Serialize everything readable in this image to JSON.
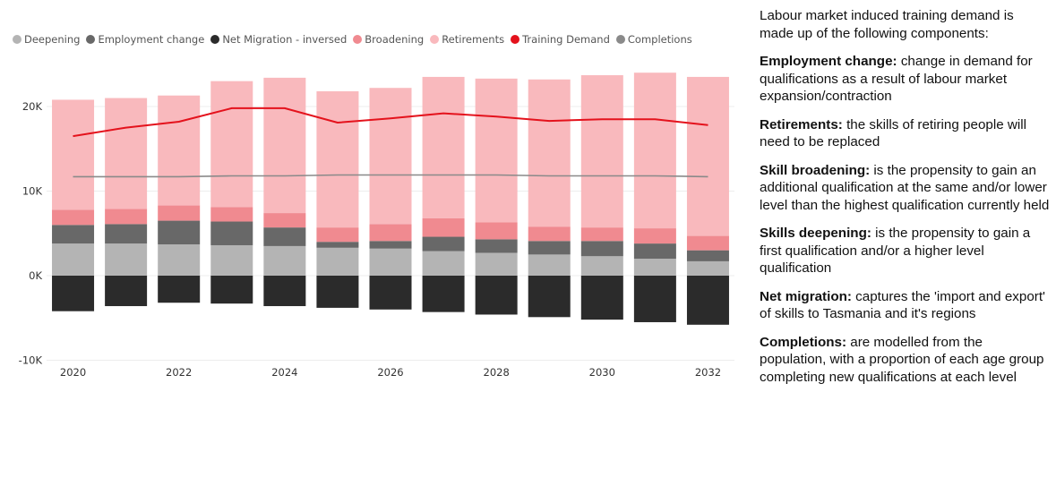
{
  "legend": [
    {
      "label": "Deepening",
      "color": "#b4b4b4"
    },
    {
      "label": "Employment change",
      "color": "#686868"
    },
    {
      "label": "Net Migration - inversed",
      "color": "#2b2b2b"
    },
    {
      "label": "Broadening",
      "color": "#f08a90"
    },
    {
      "label": "Retirements",
      "color": "#f9b9bd"
    },
    {
      "label": "Training Demand",
      "color": "#e4121c"
    },
    {
      "label": "Completions",
      "color": "#8a8a8a"
    }
  ],
  "chart_data": {
    "type": "bar",
    "stacked": true,
    "categories": [
      "2020",
      "2021",
      "2022",
      "2023",
      "2024",
      "2025",
      "2026",
      "2027",
      "2028",
      "2029",
      "2030",
      "2031",
      "2032"
    ],
    "x_tick_labels": [
      "2020",
      "2022",
      "2024",
      "2026",
      "2028",
      "2030",
      "2032"
    ],
    "y_ticks": [
      {
        "value": 20000,
        "label": "20K"
      },
      {
        "value": 10000,
        "label": "10K"
      },
      {
        "value": 0,
        "label": "0K"
      },
      {
        "value": -10000,
        "label": "-10K"
      }
    ],
    "ylim": [
      -10000,
      24500
    ],
    "series": [
      {
        "name": "Deepening",
        "color": "#b4b4b4",
        "values": [
          3800,
          3800,
          3700,
          3600,
          3500,
          3300,
          3200,
          2900,
          2700,
          2500,
          2300,
          2000,
          1700
        ]
      },
      {
        "name": "Employment change",
        "color": "#686868",
        "values": [
          2200,
          2300,
          2800,
          2800,
          2200,
          700,
          900,
          1700,
          1600,
          1600,
          1800,
          1800,
          1300
        ]
      },
      {
        "name": "Net Migration - inversed",
        "color": "#2b2b2b",
        "values": [
          -4200,
          -3600,
          -3200,
          -3300,
          -3600,
          -3800,
          -4000,
          -4300,
          -4600,
          -4900,
          -5200,
          -5500,
          -5800
        ]
      },
      {
        "name": "Broadening",
        "color": "#f08a90",
        "values": [
          1800,
          1800,
          1800,
          1700,
          1700,
          1700,
          2000,
          2200,
          2000,
          1700,
          1600,
          1800,
          1700
        ]
      },
      {
        "name": "Retirements",
        "color": "#f9b9bd",
        "values": [
          13000,
          13100,
          13000,
          14900,
          16000,
          16100,
          16100,
          16700,
          17000,
          17400,
          18000,
          18400,
          18800
        ]
      }
    ],
    "lines": [
      {
        "name": "Training Demand",
        "color": "#e4121c",
        "values": [
          16500,
          17500,
          18200,
          19800,
          19800,
          18100,
          18600,
          19200,
          18800,
          18300,
          18500,
          18500,
          17800
        ]
      },
      {
        "name": "Completions",
        "color": "#8a8a8a",
        "values": [
          11700,
          11700,
          11700,
          11800,
          11800,
          11900,
          11900,
          11900,
          11900,
          11800,
          11800,
          11800,
          11700
        ]
      }
    ]
  },
  "panel": {
    "intro": "Labour market induced training demand is made up of the following components:",
    "items": [
      {
        "term": "Employment change:",
        "desc": " change in demand for qualifications as a result of labour market expansion/contraction"
      },
      {
        "term": "Retirements:",
        "desc": " the skills of retiring people will need to be replaced"
      },
      {
        "term": "Skill broadening:",
        "desc": " is the propensity to gain an additional qualification at the same and/or lower level than the highest qualification currently held"
      },
      {
        "term": "Skills deepening:",
        "desc": " is the propensity to gain a first qualification and/or a higher level qualification"
      },
      {
        "term": "Net migration:",
        "desc": " captures the 'import and export' of skills to Tasmania and it's regions"
      },
      {
        "term": "Completions:",
        "desc": " are modelled from the population, with a proportion of each age group completing new qualifications at each level"
      }
    ]
  }
}
